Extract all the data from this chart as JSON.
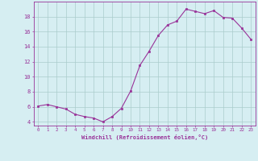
{
  "x": [
    0,
    1,
    2,
    3,
    4,
    5,
    6,
    7,
    8,
    9,
    10,
    11,
    12,
    13,
    14,
    15,
    16,
    17,
    18,
    19,
    20,
    21,
    22,
    23
  ],
  "y": [
    6.1,
    6.3,
    6.0,
    5.7,
    5.0,
    4.7,
    4.5,
    4.0,
    4.7,
    5.8,
    8.1,
    11.5,
    13.4,
    15.5,
    16.9,
    17.4,
    19.0,
    18.7,
    18.4,
    18.8,
    17.9,
    17.8,
    16.5,
    15.0
  ],
  "line_color": "#993399",
  "marker_color": "#993399",
  "bg_color": "#d6eef2",
  "grid_color": "#aacccc",
  "text_color": "#993399",
  "xlabel": "Windchill (Refroidissement éolien,°C)",
  "ylim": [
    3.5,
    20.0
  ],
  "xlim": [
    -0.5,
    23.5
  ],
  "yticks": [
    4,
    6,
    8,
    10,
    12,
    14,
    16,
    18
  ],
  "xticks": [
    0,
    1,
    2,
    3,
    4,
    5,
    6,
    7,
    8,
    9,
    10,
    11,
    12,
    13,
    14,
    15,
    16,
    17,
    18,
    19,
    20,
    21,
    22,
    23
  ],
  "xtick_labels": [
    "0",
    "1",
    "2",
    "3",
    "4",
    "5",
    "6",
    "7",
    "8",
    "9",
    "10",
    "11",
    "12",
    "13",
    "14",
    "15",
    "16",
    "17",
    "18",
    "19",
    "20",
    "21",
    "22",
    "23"
  ],
  "figsize": [
    3.2,
    2.0
  ],
  "dpi": 100
}
